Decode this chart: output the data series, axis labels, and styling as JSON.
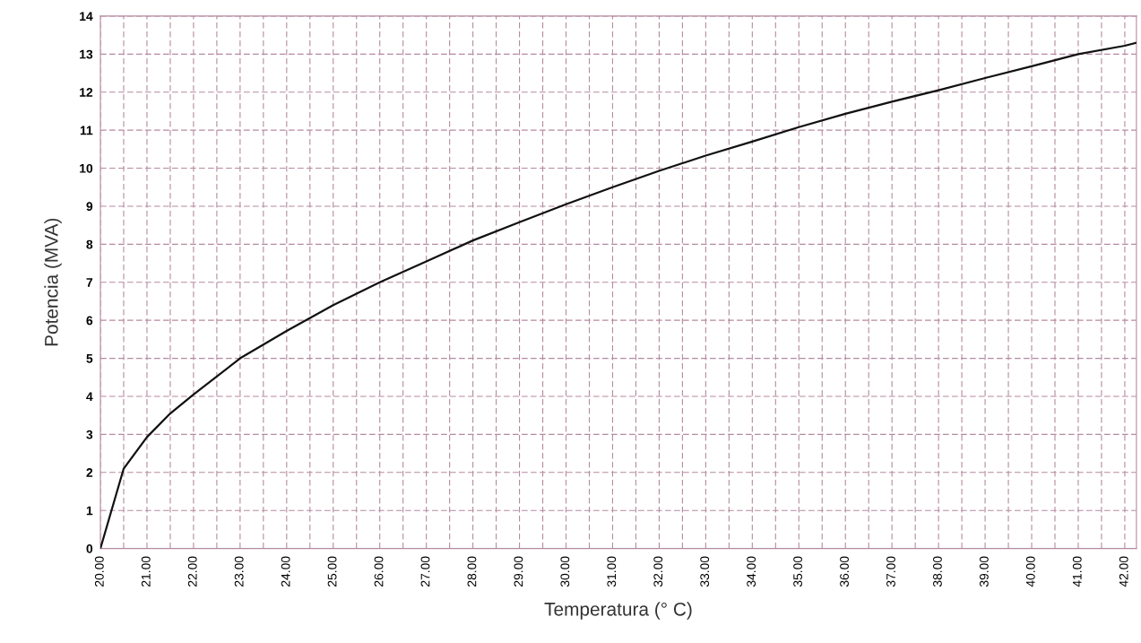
{
  "chart_data": {
    "type": "line",
    "xlabel": "Temperatura (° C)",
    "ylabel": "Potencia (MVA)",
    "x": [
      20,
      20.5,
      21,
      21.5,
      22,
      23,
      24,
      25,
      26,
      27,
      28,
      29,
      30,
      31,
      32,
      33,
      34,
      35,
      36,
      37,
      38,
      39,
      40,
      41,
      42,
      42.25
    ],
    "series": [
      {
        "color": "#111111",
        "values": [
          0,
          2.1,
          2.93,
          3.55,
          4.05,
          5.0,
          5.72,
          6.4,
          7.0,
          7.55,
          8.1,
          8.58,
          9.05,
          9.5,
          9.93,
          10.33,
          10.7,
          11.08,
          11.43,
          11.75,
          12.05,
          12.37,
          12.68,
          13.0,
          13.22,
          13.3
        ]
      }
    ],
    "xlim": [
      20,
      42.25
    ],
    "ylim": [
      0,
      14
    ],
    "xticks": [
      {
        "value": 20,
        "label": "20.00"
      },
      {
        "value": 20.5,
        "label": null
      },
      {
        "value": 21,
        "label": "21.00"
      },
      {
        "value": 21.5,
        "label": null
      },
      {
        "value": 22,
        "label": "22.00"
      },
      {
        "value": 22.5,
        "label": null
      },
      {
        "value": 23,
        "label": "23.00"
      },
      {
        "value": 23.5,
        "label": null
      },
      {
        "value": 24,
        "label": "24.00"
      },
      {
        "value": 24.5,
        "label": null
      },
      {
        "value": 25,
        "label": "25.00"
      },
      {
        "value": 25.5,
        "label": null
      },
      {
        "value": 26,
        "label": "26.00"
      },
      {
        "value": 26.5,
        "label": null
      },
      {
        "value": 27,
        "label": "27.00"
      },
      {
        "value": 27.5,
        "label": null
      },
      {
        "value": 28,
        "label": "28.00"
      },
      {
        "value": 28.5,
        "label": null
      },
      {
        "value": 29,
        "label": "29.00"
      },
      {
        "value": 29.5,
        "label": null
      },
      {
        "value": 30,
        "label": "30.00"
      },
      {
        "value": 30.5,
        "label": null
      },
      {
        "value": 31,
        "label": "31.00"
      },
      {
        "value": 31.5,
        "label": null
      },
      {
        "value": 32,
        "label": "32.00"
      },
      {
        "value": 32.5,
        "label": null
      },
      {
        "value": 33,
        "label": "33.00"
      },
      {
        "value": 33.5,
        "label": null
      },
      {
        "value": 34,
        "label": "34.00"
      },
      {
        "value": 34.5,
        "label": null
      },
      {
        "value": 35,
        "label": "35.00"
      },
      {
        "value": 35.5,
        "label": null
      },
      {
        "value": 36,
        "label": "36.00"
      },
      {
        "value": 36.5,
        "label": null
      },
      {
        "value": 37,
        "label": "37.00"
      },
      {
        "value": 37.5,
        "label": null
      },
      {
        "value": 38,
        "label": "38.00"
      },
      {
        "value": 38.5,
        "label": null
      },
      {
        "value": 39,
        "label": "39.00"
      },
      {
        "value": 39.5,
        "label": null
      },
      {
        "value": 40,
        "label": "40.00"
      },
      {
        "value": 40.5,
        "label": null
      },
      {
        "value": 41,
        "label": "41.00"
      },
      {
        "value": 41.5,
        "label": null
      },
      {
        "value": 42,
        "label": "42.00"
      }
    ],
    "yticks": [
      0,
      1,
      2,
      3,
      4,
      5,
      6,
      7,
      8,
      9,
      10,
      11,
      12,
      13,
      14
    ],
    "grid": true,
    "marker": "none",
    "line_style": "solid"
  }
}
